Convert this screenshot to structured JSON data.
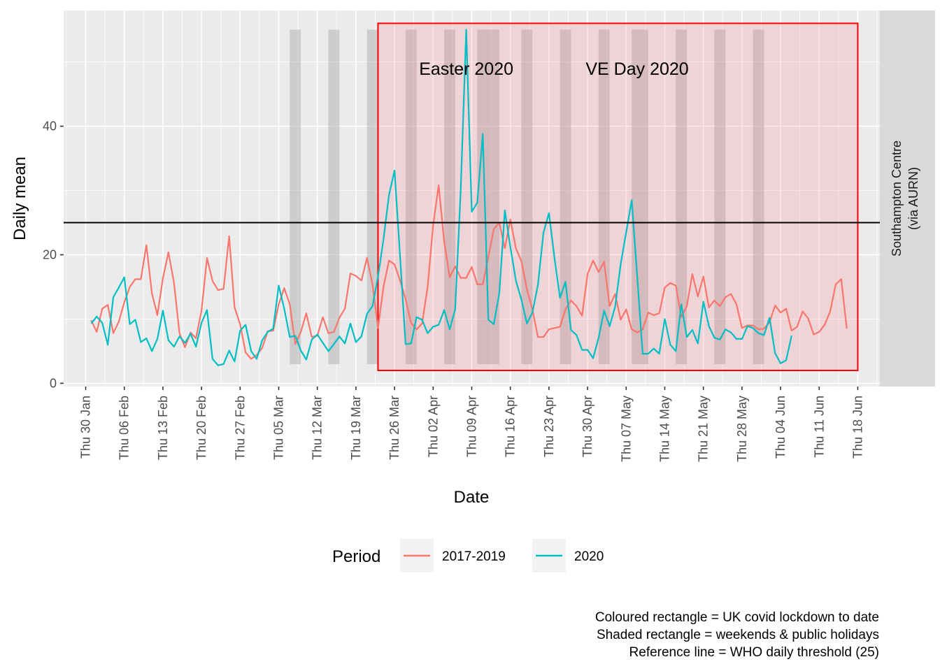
{
  "chart_data": {
    "type": "line",
    "title": "",
    "xlabel": "Date",
    "ylabel": "Daily mean",
    "facet_label": [
      "Southampton Centre",
      "(via AURN)"
    ],
    "x_range": [
      "2020-01-26",
      "2020-06-22"
    ],
    "ylim": [
      -0.5,
      58
    ],
    "y_ticks": [
      0,
      20,
      40
    ],
    "x_ticks": [
      {
        "date": "2020-01-30",
        "label": "Thu 30 Jan"
      },
      {
        "date": "2020-02-06",
        "label": "Thu 06 Feb"
      },
      {
        "date": "2020-02-13",
        "label": "Thu 13 Feb"
      },
      {
        "date": "2020-02-20",
        "label": "Thu 20 Feb"
      },
      {
        "date": "2020-02-27",
        "label": "Thu 27 Feb"
      },
      {
        "date": "2020-03-05",
        "label": "Thu 05 Mar"
      },
      {
        "date": "2020-03-12",
        "label": "Thu 12 Mar"
      },
      {
        "date": "2020-03-19",
        "label": "Thu 19 Mar"
      },
      {
        "date": "2020-03-26",
        "label": "Thu 26 Mar"
      },
      {
        "date": "2020-04-02",
        "label": "Thu 02 Apr"
      },
      {
        "date": "2020-04-09",
        "label": "Thu 09 Apr"
      },
      {
        "date": "2020-04-16",
        "label": "Thu 16 Apr"
      },
      {
        "date": "2020-04-23",
        "label": "Thu 23 Apr"
      },
      {
        "date": "2020-04-30",
        "label": "Thu 30 Apr"
      },
      {
        "date": "2020-05-07",
        "label": "Thu 07 May"
      },
      {
        "date": "2020-05-14",
        "label": "Thu 14 May"
      },
      {
        "date": "2020-05-21",
        "label": "Thu 21 May"
      },
      {
        "date": "2020-05-28",
        "label": "Thu 28 May"
      },
      {
        "date": "2020-06-04",
        "label": "Thu 04 Jun"
      },
      {
        "date": "2020-06-11",
        "label": "Thu 11  Jun"
      },
      {
        "date": "2020-06-18",
        "label": "Thu 18 Jun"
      }
    ],
    "start_date": "2020-01-31",
    "reference_line": {
      "y": 25,
      "label": "WHO daily threshold (25)"
    },
    "lockdown": {
      "x_start": "2020-03-23",
      "x_end": "2020-06-18",
      "y_start": 2,
      "y_end": 56
    },
    "shaded_periods": [
      {
        "start": "2020-03-07",
        "end": "2020-03-09"
      },
      {
        "start": "2020-03-14",
        "end": "2020-03-16"
      },
      {
        "start": "2020-03-21",
        "end": "2020-03-23"
      },
      {
        "start": "2020-03-28",
        "end": "2020-03-30"
      },
      {
        "start": "2020-04-04",
        "end": "2020-04-06"
      },
      {
        "start": "2020-04-10",
        "end": "2020-04-14"
      },
      {
        "start": "2020-04-18",
        "end": "2020-04-20"
      },
      {
        "start": "2020-04-25",
        "end": "2020-04-27"
      },
      {
        "start": "2020-05-02",
        "end": "2020-05-04"
      },
      {
        "start": "2020-05-08",
        "end": "2020-05-11"
      },
      {
        "start": "2020-05-16",
        "end": "2020-05-18"
      },
      {
        "start": "2020-05-23",
        "end": "2020-05-25"
      },
      {
        "start": "2020-05-30",
        "end": "2020-06-01"
      }
    ],
    "annotations": [
      {
        "text": "Easter 2020",
        "x": "2020-04-08",
        "y": 49
      },
      {
        "text": "VE Day 2020",
        "x": "2020-05-09",
        "y": 49
      }
    ],
    "legend": {
      "title": "Period",
      "position": "bottom"
    },
    "grid": true,
    "series": [
      {
        "name": "2017-2019",
        "color": "#F8766D",
        "values": [
          9.8,
          8.0,
          11.6,
          12.2,
          7.8,
          9.6,
          12.6,
          15.0,
          16.2,
          16.2,
          21.5,
          14.0,
          10.6,
          16.3,
          20.4,
          15.7,
          7.8,
          5.6,
          7.9,
          7.0,
          11.3,
          19.5,
          15.9,
          14.5,
          14.7,
          22.9,
          11.8,
          9.2,
          4.8,
          3.8,
          4.4,
          5.5,
          8.1,
          8.2,
          12.3,
          14.8,
          12.3,
          6.1,
          8.0,
          10.9,
          7.2,
          7.4,
          10.3,
          7.8,
          8.0,
          10.2,
          11.6,
          17.1,
          16.7,
          16.0,
          19.5,
          15.4,
          8.6,
          15.0,
          19.1,
          18.5,
          16.0,
          13.1,
          9.4,
          8.4,
          9.3,
          15.0,
          24.6,
          30.8,
          22.0,
          16.5,
          18.2,
          16.4,
          16.4,
          18.1,
          15.4,
          15.4,
          19.6,
          24.0,
          25.0,
          21.0,
          25.5,
          21.0,
          19.0,
          14.6,
          11.5,
          7.2,
          7.2,
          8.4,
          8.6,
          8.8,
          11.5,
          12.9,
          12.0,
          10.5,
          17.0,
          19.1,
          17.3,
          18.9,
          12.0,
          13.9,
          9.9,
          11.5,
          8.4,
          7.9,
          8.4,
          11.0,
          10.6,
          10.9,
          14.9,
          15.6,
          15.2,
          10.3,
          12.0,
          17.0,
          13.5,
          16.6,
          11.8,
          12.9,
          12.0,
          13.4,
          13.9,
          12.3,
          8.6,
          9.0,
          9.0,
          8.4,
          8.5,
          9.5,
          12.1,
          11.0,
          11.6,
          8.2,
          8.8,
          11.2,
          10.1,
          7.6,
          8.0,
          9.1,
          11.2,
          15.4,
          16.2,
          8.5
        ]
      },
      {
        "name": "2020",
        "color": "#00BFC4",
        "values": [
          9.3,
          10.4,
          9.4,
          6.0,
          13.4,
          14.9,
          16.5,
          9.2,
          9.9,
          6.4,
          7.0,
          5.0,
          6.9,
          11.3,
          6.7,
          5.7,
          7.3,
          6.3,
          7.7,
          5.7,
          9.4,
          11.4,
          3.8,
          2.8,
          3.0,
          5.1,
          3.4,
          8.2,
          9.1,
          5.0,
          3.8,
          6.7,
          8.0,
          8.5,
          15.2,
          11.6,
          7.2,
          7.4,
          5.1,
          3.7,
          6.8,
          7.6,
          6.3,
          5.0,
          6.1,
          7.3,
          6.2,
          9.3,
          6.4,
          7.3,
          10.8,
          12.0,
          16.6,
          22.4,
          29.3,
          33.1,
          19.8,
          6.1,
          6.2,
          10.3,
          9.9,
          7.8,
          8.8,
          9.1,
          11.4,
          8.4,
          11.5,
          30.0,
          55.0,
          26.7,
          28.1,
          38.8,
          9.9,
          9.2,
          14.0,
          26.9,
          21.2,
          16.0,
          13.0,
          9.3,
          11.0,
          15.3,
          23.4,
          26.5,
          19.5,
          13.3,
          15.8,
          8.3,
          7.5,
          5.2,
          5.2,
          3.9,
          7.1,
          11.3,
          8.9,
          11.9,
          18.5,
          23.5,
          28.5,
          16.6,
          4.6,
          4.6,
          5.4,
          4.6,
          10.0,
          6.0,
          5.0,
          12.3,
          7.2,
          8.3,
          6.2,
          12.7,
          8.9,
          7.1,
          6.8,
          8.4,
          7.9,
          6.9,
          6.9,
          8.9,
          8.6,
          7.8,
          7.5,
          10.2,
          4.7,
          3.1,
          3.6,
          7.4
        ]
      }
    ]
  },
  "caption_lines": [
    "Coloured rectangle = UK covid lockdown to date",
    "Shaded rectangle = weekends & public holidays",
    "Reference line = WHO daily threshold (25)"
  ]
}
